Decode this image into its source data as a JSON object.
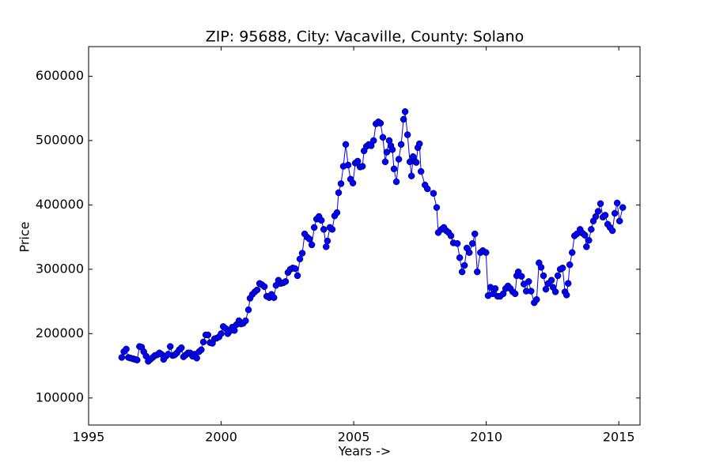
{
  "chart_data": {
    "type": "line",
    "title": "ZIP: 95688, City: Vacaville, County: Solano",
    "x_label": "Years ->",
    "y_label": "Price",
    "x": [
      1996.25,
      1996.33,
      1996.42,
      1996.5,
      1996.58,
      1996.67,
      1996.75,
      1996.83,
      1996.92,
      1997.0,
      1997.08,
      1997.17,
      1997.25,
      1997.33,
      1997.42,
      1997.5,
      1997.58,
      1997.67,
      1997.75,
      1997.83,
      1997.92,
      1998.0,
      1998.08,
      1998.17,
      1998.25,
      1998.33,
      1998.42,
      1998.5,
      1998.58,
      1998.67,
      1998.75,
      1998.83,
      1998.92,
      1999.0,
      1999.08,
      1999.17,
      1999.25,
      1999.33,
      1999.42,
      1999.5,
      1999.58,
      1999.67,
      1999.75,
      1999.83,
      1999.92,
      2000.0,
      2000.08,
      2000.17,
      2000.25,
      2000.33,
      2000.42,
      2000.5,
      2000.58,
      2000.67,
      2000.75,
      2000.83,
      2000.92,
      2001.03,
      2001.09,
      2001.18,
      2001.27,
      2001.36,
      2001.45,
      2001.54,
      2001.63,
      2001.72,
      2001.81,
      2001.9,
      2001.99,
      2002.07,
      2002.16,
      2002.25,
      2002.34,
      2002.43,
      2002.52,
      2002.61,
      2002.7,
      2002.79,
      2002.88,
      2002.97,
      2003.06,
      2003.15,
      2003.24,
      2003.33,
      2003.42,
      2003.51,
      2003.6,
      2003.69,
      2003.78,
      2003.87,
      2003.96,
      2004.01,
      2004.1,
      2004.19,
      2004.28,
      2004.37,
      2004.43,
      2004.52,
      2004.61,
      2004.7,
      2004.79,
      2004.88,
      2004.97,
      2005.06,
      2005.15,
      2005.24,
      2005.33,
      2005.39,
      2005.48,
      2005.57,
      2005.66,
      2005.75,
      2005.84,
      2005.93,
      2006.01,
      2006.1,
      2006.19,
      2006.25,
      2006.34,
      2006.4,
      2006.46,
      2006.52,
      2006.61,
      2006.7,
      2006.79,
      2006.88,
      2006.94,
      2007.03,
      2007.12,
      2007.18,
      2007.24,
      2007.3,
      2007.36,
      2007.42,
      2007.48,
      2007.54,
      2007.69,
      2007.78,
      2008.01,
      2008.13,
      2008.19,
      2008.31,
      2008.4,
      2008.49,
      2008.58,
      2008.67,
      2008.76,
      2008.91,
      2009.0,
      2009.09,
      2009.18,
      2009.27,
      2009.36,
      2009.48,
      2009.57,
      2009.66,
      2009.78,
      2009.87,
      2009.99,
      2010.07,
      2010.16,
      2010.25,
      2010.34,
      2010.43,
      2010.52,
      2010.64,
      2010.73,
      2010.82,
      2010.91,
      2011.0,
      2011.09,
      2011.15,
      2011.21,
      2011.33,
      2011.42,
      2011.51,
      2011.6,
      2011.69,
      2011.81,
      2011.9,
      2011.99,
      2012.07,
      2012.16,
      2012.25,
      2012.34,
      2012.46,
      2012.52,
      2012.61,
      2012.7,
      2012.79,
      2012.88,
      2012.97,
      2013.03,
      2013.09,
      2013.15,
      2013.24,
      2013.33,
      2013.42,
      2013.54,
      2013.63,
      2013.72,
      2013.78,
      2013.87,
      2013.96,
      2014.04,
      2014.13,
      2014.22,
      2014.31,
      2014.4,
      2014.49,
      2014.58,
      2014.67,
      2014.76,
      2014.85,
      2014.94,
      2015.03,
      2015.15
    ],
    "series": [
      {
        "color": "#0000ff",
        "values": [
          163000,
          172000,
          176000,
          163000,
          162000,
          161000,
          160000,
          159000,
          180000,
          179000,
          172000,
          165000,
          157000,
          160000,
          163000,
          166000,
          167000,
          170000,
          168000,
          160000,
          165000,
          168000,
          180000,
          166000,
          167000,
          170000,
          175000,
          178000,
          164000,
          167000,
          170000,
          170000,
          165000,
          168000,
          162000,
          172000,
          175000,
          187000,
          198000,
          198000,
          186000,
          185000,
          192000,
          193000,
          195000,
          200000,
          211000,
          208000,
          200000,
          204000,
          210000,
          205000,
          214000,
          220000,
          215000,
          216000,
          220000,
          237000,
          255000,
          261000,
          265000,
          268000,
          278000,
          276000,
          273000,
          258000,
          256000,
          261000,
          256000,
          275000,
          283000,
          278000,
          279000,
          281000,
          295000,
          300000,
          302000,
          301000,
          290000,
          316000,
          325000,
          355000,
          350000,
          347000,
          338000,
          365000,
          378000,
          382000,
          376000,
          362000,
          335000,
          344000,
          365000,
          362000,
          383000,
          388000,
          419000,
          433000,
          460000,
          494000,
          462000,
          440000,
          434000,
          465000,
          468000,
          459000,
          460000,
          484000,
          491000,
          494000,
          492000,
          500000,
          526000,
          529000,
          527000,
          505000,
          467000,
          482000,
          500000,
          492000,
          486000,
          456000,
          436000,
          471000,
          494000,
          533000,
          545000,
          509000,
          467000,
          445000,
          475000,
          468000,
          466000,
          489000,
          495000,
          452000,
          431000,
          425000,
          418000,
          396000,
          357000,
          362000,
          365000,
          360000,
          357000,
          352000,
          341000,
          340000,
          318000,
          296000,
          306000,
          333000,
          326000,
          340000,
          355000,
          296000,
          326000,
          329000,
          326000,
          259000,
          272000,
          262000,
          270000,
          258000,
          258000,
          262000,
          270000,
          274000,
          270000,
          265000,
          262000,
          290000,
          296000,
          289000,
          277000,
          266000,
          281000,
          266000,
          248000,
          253000,
          310000,
          303000,
          290000,
          269000,
          278000,
          283000,
          272000,
          265000,
          290000,
          300000,
          302000,
          265000,
          260000,
          278000,
          307000,
          326000,
          352000,
          355000,
          362000,
          356000,
          353000,
          335000,
          345000,
          362000,
          375000,
          382000,
          390000,
          402000,
          381000,
          384000,
          370000,
          365000,
          360000,
          387000,
          403000,
          375000,
          396000
        ]
      }
    ],
    "xlim": [
      1995,
      2015.8
    ],
    "ylim": [
      58000,
      646000
    ],
    "xticks": [
      1995,
      2000,
      2005,
      2010,
      2015
    ],
    "yticks": [
      100000,
      200000,
      300000,
      400000,
      500000,
      600000
    ],
    "grid": false,
    "markers": true
  }
}
